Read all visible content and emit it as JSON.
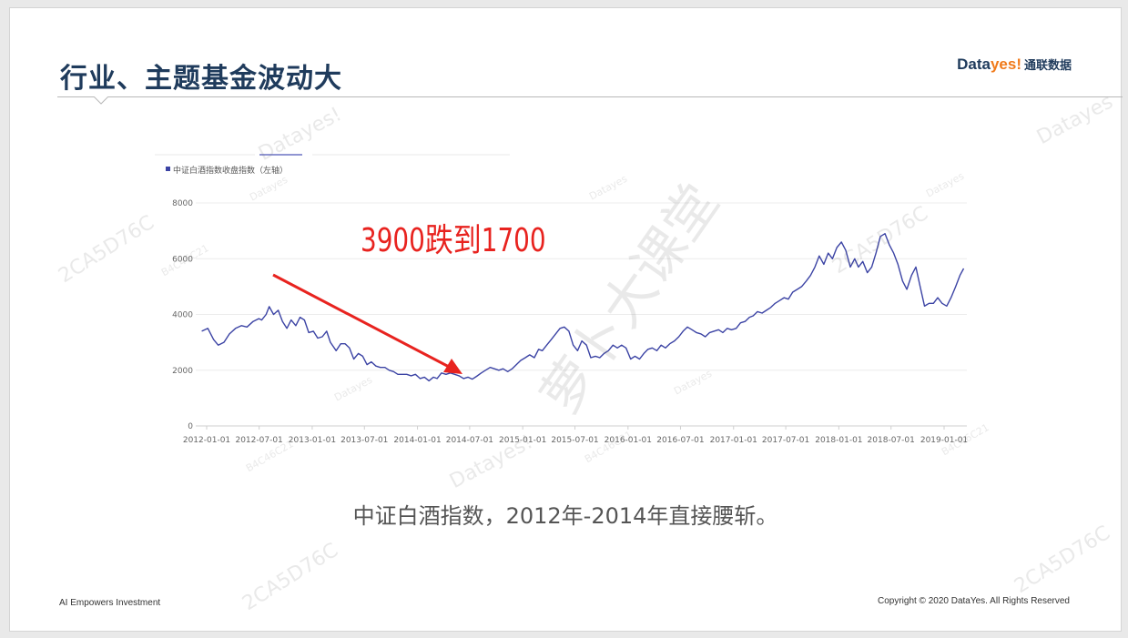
{
  "slide": {
    "title": "行业、主题基金波动大",
    "logo_brand_prefix": "Data",
    "logo_brand_suffix": "yes!",
    "logo_cn": "通联数据",
    "caption": "中证白酒指数，2012年-2014年直接腰斩。",
    "footer_left": "AI Empowers Investment",
    "footer_right": "Copyright © 2020 DataYes. All Rights Reserved",
    "annotation": "3900跌到1700"
  },
  "watermarks": {
    "brand": "Datayes",
    "brand_excl": "Datayes!",
    "code_a": "2CA5D76C",
    "code_b": "B4C46C21",
    "course": "萝卜大课堂"
  },
  "colors": {
    "line": "#3b43a4",
    "annotation": "#e8231f",
    "title": "#1f3b5c",
    "accent": "#f07a1a"
  },
  "chart_data": {
    "type": "line",
    "legend": "中证白酒指数收盘指数（左轴）",
    "legend_position": "top-left",
    "ylim": [
      0,
      8000
    ],
    "yticks": [
      0,
      2000,
      4000,
      6000,
      8000
    ],
    "grid": true,
    "xticks": [
      "2012-01-01",
      "2012-07-01",
      "2013-01-01",
      "2013-07-01",
      "2014-01-01",
      "2014-07-01",
      "2015-01-01",
      "2015-07-01",
      "2016-01-01",
      "2016-07-01",
      "2017-01-01",
      "2017-07-01",
      "2018-01-01",
      "2018-07-01",
      "2019-01-01"
    ],
    "series": [
      {
        "name": "中证白酒指数收盘指数（左轴）",
        "points": [
          [
            "2011-12-15",
            3400
          ],
          [
            "2012-01-05",
            3500
          ],
          [
            "2012-01-25",
            3100
          ],
          [
            "2012-02-10",
            2900
          ],
          [
            "2012-03-01",
            3000
          ],
          [
            "2012-03-20",
            3300
          ],
          [
            "2012-04-10",
            3500
          ],
          [
            "2012-05-01",
            3600
          ],
          [
            "2012-05-20",
            3550
          ],
          [
            "2012-06-10",
            3750
          ],
          [
            "2012-06-30",
            3850
          ],
          [
            "2012-07-10",
            3800
          ],
          [
            "2012-07-25",
            4000
          ],
          [
            "2012-08-05",
            4280
          ],
          [
            "2012-08-20",
            4000
          ],
          [
            "2012-09-05",
            4150
          ],
          [
            "2012-09-20",
            3750
          ],
          [
            "2012-10-05",
            3500
          ],
          [
            "2012-10-20",
            3800
          ],
          [
            "2012-11-05",
            3600
          ],
          [
            "2012-11-20",
            3900
          ],
          [
            "2012-12-05",
            3800
          ],
          [
            "2012-12-20",
            3350
          ],
          [
            "2013-01-05",
            3400
          ],
          [
            "2013-01-20",
            3150
          ],
          [
            "2013-02-05",
            3200
          ],
          [
            "2013-02-20",
            3400
          ],
          [
            "2013-03-05",
            3000
          ],
          [
            "2013-03-25",
            2700
          ],
          [
            "2013-04-10",
            2950
          ],
          [
            "2013-04-25",
            2950
          ],
          [
            "2013-05-10",
            2800
          ],
          [
            "2013-05-25",
            2400
          ],
          [
            "2013-06-10",
            2600
          ],
          [
            "2013-06-25",
            2500
          ],
          [
            "2013-07-10",
            2200
          ],
          [
            "2013-07-25",
            2300
          ],
          [
            "2013-08-10",
            2150
          ],
          [
            "2013-08-25",
            2100
          ],
          [
            "2013-09-10",
            2100
          ],
          [
            "2013-09-25",
            2000
          ],
          [
            "2013-10-10",
            1950
          ],
          [
            "2013-10-25",
            1850
          ],
          [
            "2013-11-10",
            1850
          ],
          [
            "2013-11-25",
            1850
          ],
          [
            "2013-12-10",
            1800
          ],
          [
            "2013-12-25",
            1850
          ],
          [
            "2014-01-10",
            1700
          ],
          [
            "2014-01-25",
            1750
          ],
          [
            "2014-02-10",
            1620
          ],
          [
            "2014-02-25",
            1750
          ],
          [
            "2014-03-10",
            1700
          ],
          [
            "2014-03-25",
            1900
          ],
          [
            "2014-04-10",
            1850
          ],
          [
            "2014-04-25",
            1900
          ],
          [
            "2014-05-10",
            1850
          ],
          [
            "2014-05-25",
            1800
          ],
          [
            "2014-06-10",
            1700
          ],
          [
            "2014-06-25",
            1750
          ],
          [
            "2014-07-10",
            1680
          ],
          [
            "2014-07-25",
            1780
          ],
          [
            "2014-08-10",
            1900
          ],
          [
            "2014-08-25",
            2000
          ],
          [
            "2014-09-10",
            2100
          ],
          [
            "2014-09-25",
            2050
          ],
          [
            "2014-10-10",
            2000
          ],
          [
            "2014-10-25",
            2050
          ],
          [
            "2014-11-10",
            1950
          ],
          [
            "2014-11-25",
            2050
          ],
          [
            "2014-12-10",
            2200
          ],
          [
            "2014-12-25",
            2350
          ],
          [
            "2015-01-10",
            2450
          ],
          [
            "2015-01-25",
            2550
          ],
          [
            "2015-02-10",
            2450
          ],
          [
            "2015-02-25",
            2750
          ],
          [
            "2015-03-10",
            2700
          ],
          [
            "2015-03-25",
            2900
          ],
          [
            "2015-04-10",
            3100
          ],
          [
            "2015-04-25",
            3300
          ],
          [
            "2015-05-10",
            3500
          ],
          [
            "2015-05-25",
            3550
          ],
          [
            "2015-06-10",
            3400
          ],
          [
            "2015-06-25",
            2900
          ],
          [
            "2015-07-10",
            2700
          ],
          [
            "2015-07-25",
            3050
          ],
          [
            "2015-08-10",
            2900
          ],
          [
            "2015-08-25",
            2450
          ],
          [
            "2015-09-10",
            2500
          ],
          [
            "2015-09-25",
            2450
          ],
          [
            "2015-10-10",
            2600
          ],
          [
            "2015-10-25",
            2700
          ],
          [
            "2015-11-10",
            2900
          ],
          [
            "2015-11-25",
            2800
          ],
          [
            "2015-12-10",
            2900
          ],
          [
            "2015-12-25",
            2800
          ],
          [
            "2016-01-10",
            2400
          ],
          [
            "2016-01-25",
            2500
          ],
          [
            "2016-02-10",
            2400
          ],
          [
            "2016-02-25",
            2600
          ],
          [
            "2016-03-10",
            2750
          ],
          [
            "2016-03-25",
            2800
          ],
          [
            "2016-04-10",
            2700
          ],
          [
            "2016-04-25",
            2900
          ],
          [
            "2016-05-10",
            2800
          ],
          [
            "2016-05-25",
            2950
          ],
          [
            "2016-06-10",
            3050
          ],
          [
            "2016-06-25",
            3200
          ],
          [
            "2016-07-10",
            3400
          ],
          [
            "2016-07-25",
            3550
          ],
          [
            "2016-08-10",
            3450
          ],
          [
            "2016-08-25",
            3350
          ],
          [
            "2016-09-10",
            3300
          ],
          [
            "2016-09-25",
            3200
          ],
          [
            "2016-10-10",
            3350
          ],
          [
            "2016-10-25",
            3400
          ],
          [
            "2016-11-10",
            3450
          ],
          [
            "2016-11-25",
            3350
          ],
          [
            "2016-12-10",
            3500
          ],
          [
            "2016-12-25",
            3450
          ],
          [
            "2017-01-10",
            3500
          ],
          [
            "2017-01-25",
            3700
          ],
          [
            "2017-02-10",
            3750
          ],
          [
            "2017-02-25",
            3900
          ],
          [
            "2017-03-10",
            3950
          ],
          [
            "2017-03-25",
            4100
          ],
          [
            "2017-04-10",
            4050
          ],
          [
            "2017-04-25",
            4150
          ],
          [
            "2017-05-10",
            4250
          ],
          [
            "2017-05-25",
            4400
          ],
          [
            "2017-06-10",
            4500
          ],
          [
            "2017-06-25",
            4600
          ],
          [
            "2017-07-10",
            4550
          ],
          [
            "2017-07-25",
            4800
          ],
          [
            "2017-08-10",
            4900
          ],
          [
            "2017-08-25",
            5000
          ],
          [
            "2017-09-10",
            5200
          ],
          [
            "2017-09-25",
            5400
          ],
          [
            "2017-10-10",
            5700
          ],
          [
            "2017-10-25",
            6100
          ],
          [
            "2017-11-10",
            5800
          ],
          [
            "2017-11-25",
            6200
          ],
          [
            "2017-12-10",
            6000
          ],
          [
            "2017-12-25",
            6400
          ],
          [
            "2018-01-10",
            6600
          ],
          [
            "2018-01-25",
            6300
          ],
          [
            "2018-02-10",
            5700
          ],
          [
            "2018-02-25",
            6000
          ],
          [
            "2018-03-10",
            5700
          ],
          [
            "2018-03-25",
            5900
          ],
          [
            "2018-04-10",
            5500
          ],
          [
            "2018-04-25",
            5700
          ],
          [
            "2018-05-10",
            6200
          ],
          [
            "2018-05-25",
            6800
          ],
          [
            "2018-06-10",
            6900
          ],
          [
            "2018-06-25",
            6500
          ],
          [
            "2018-07-10",
            6200
          ],
          [
            "2018-07-25",
            5800
          ],
          [
            "2018-08-10",
            5200
          ],
          [
            "2018-08-25",
            4900
          ],
          [
            "2018-09-10",
            5400
          ],
          [
            "2018-09-25",
            5700
          ],
          [
            "2018-10-10",
            5000
          ],
          [
            "2018-10-25",
            4300
          ],
          [
            "2018-11-10",
            4400
          ],
          [
            "2018-11-25",
            4400
          ],
          [
            "2018-12-10",
            4600
          ],
          [
            "2018-12-25",
            4400
          ],
          [
            "2019-01-10",
            4300
          ],
          [
            "2019-01-25",
            4600
          ],
          [
            "2019-02-10",
            5000
          ],
          [
            "2019-02-25",
            5400
          ],
          [
            "2019-03-10",
            5650
          ]
        ]
      }
    ]
  }
}
